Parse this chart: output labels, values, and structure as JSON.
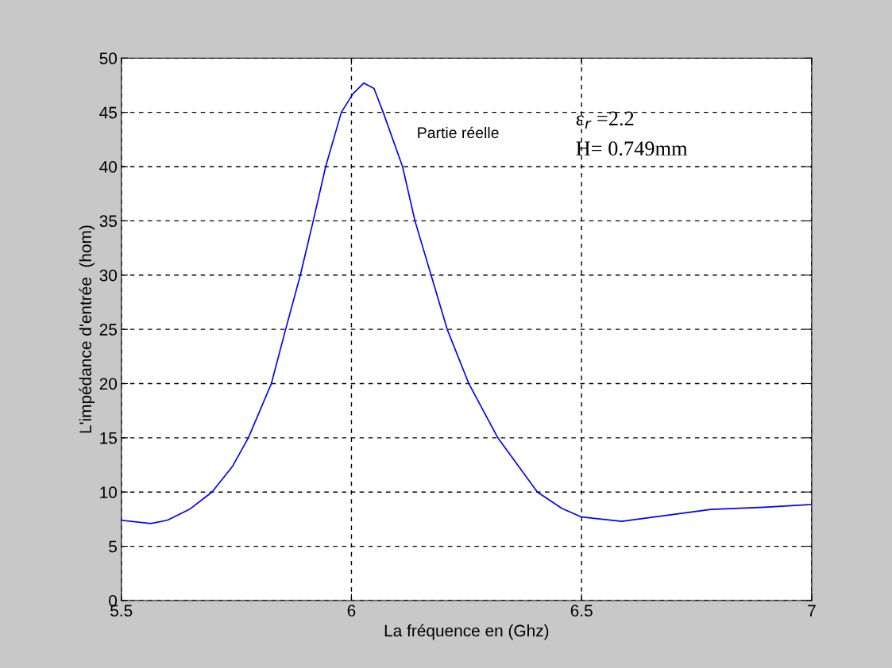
{
  "chart_data": {
    "type": "line",
    "xlabel": "La fréquence en (Ghz)",
    "ylabel": "L'impédance d'entrée  (hom)",
    "x": [
      5.5,
      5.564,
      5.6,
      5.648,
      5.697,
      5.742,
      5.776,
      5.826,
      5.857,
      5.889,
      5.917,
      5.944,
      5.978,
      6.003,
      6.027,
      6.049,
      6.069,
      6.111,
      6.138,
      6.173,
      6.208,
      6.255,
      6.318,
      6.404,
      6.457,
      6.5,
      6.587,
      6.781,
      6.897,
      7.0
    ],
    "series": [
      {
        "color": "#0000ff",
        "values": [
          7.4,
          7.1,
          7.4,
          8.4,
          10,
          12.4,
          15,
          20,
          25,
          30,
          35,
          40,
          45,
          46.7,
          47.7,
          47.2,
          45,
          40,
          35,
          30,
          25,
          20,
          15,
          10,
          8.5,
          7.7,
          7.3,
          8.4,
          8.6,
          8.85
        ]
      }
    ],
    "xlim": [
      5.5,
      7
    ],
    "ylim": [
      0,
      50
    ],
    "xticks": [
      5.5,
      6,
      6.5,
      7
    ],
    "yticks": [
      0,
      5,
      10,
      15,
      20,
      25,
      30,
      35,
      40,
      45,
      50
    ],
    "grid": true,
    "line_style": "solid",
    "annotations": [
      "Partie réelle",
      "ε$_{r}$ =2.2",
      "H= 0.749mm"
    ]
  }
}
